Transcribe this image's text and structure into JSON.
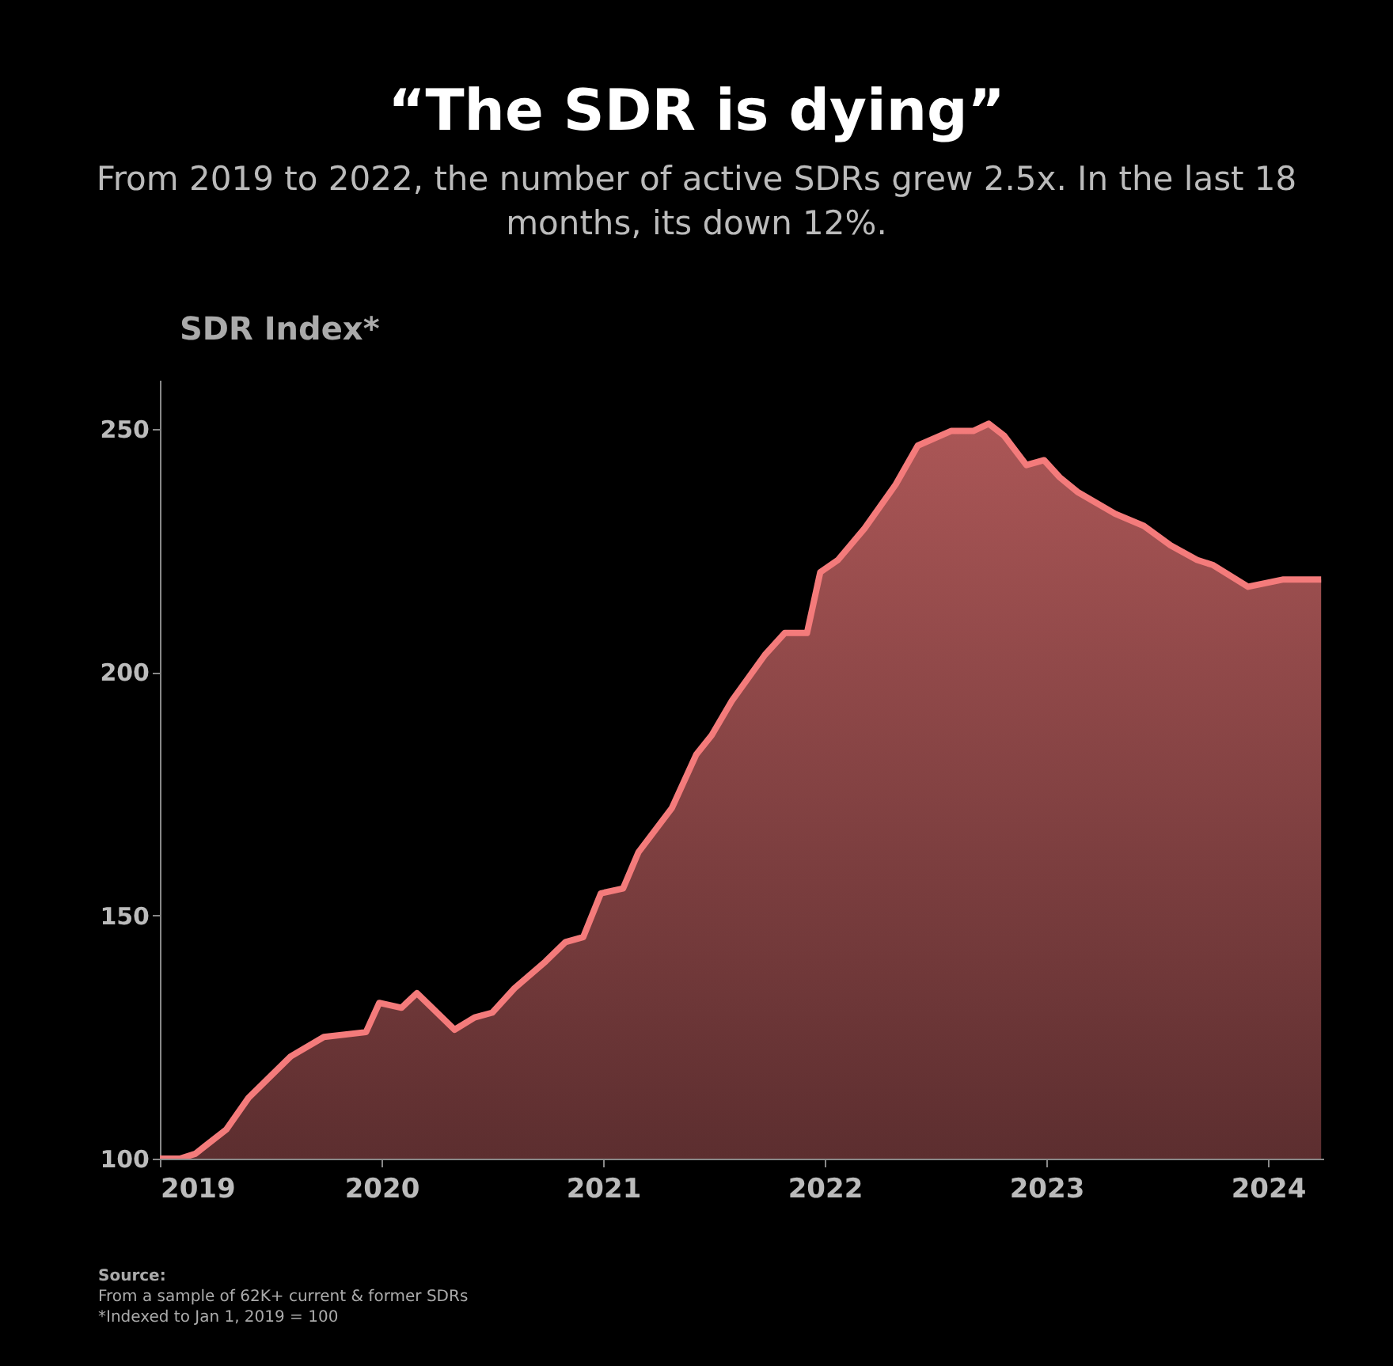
{
  "chart_data": {
    "type": "area",
    "title": "“The SDR is dying”",
    "subtitle": "From 2019 to 2022, the number of active SDRs grew 2.5x. In the last 18 months, its down 12%.",
    "ylabel": "SDR Index*",
    "annotations": [
      "Source:",
      "From a sample of 62K+ current & former SDRs",
      "*Indexed to Jan 1, 2019 = 100"
    ],
    "x": [
      2019.0,
      2019.09,
      2019.16,
      2019.3,
      2019.4,
      2019.59,
      2019.74,
      2019.93,
      2019.99,
      2020.09,
      2020.16,
      2020.33,
      2020.42,
      2020.5,
      2020.6,
      2020.74,
      2020.83,
      2020.91,
      2020.99,
      2021.09,
      2021.16,
      2021.31,
      2021.42,
      2021.49,
      2021.58,
      2021.73,
      2021.82,
      2021.92,
      2021.98,
      2022.06,
      2022.18,
      2022.32,
      2022.42,
      2022.57,
      2022.67,
      2022.74,
      2022.81,
      2022.91,
      2022.99,
      2023.06,
      2023.14,
      2023.31,
      2023.44,
      2023.56,
      2023.68,
      2023.75,
      2023.91,
      2024.07,
      2024.24
    ],
    "series": [
      {
        "color": "#f47b7b",
        "values": [
          100,
          100,
          101,
          106,
          112.5,
          121,
          125,
          126,
          132,
          131,
          134,
          126.5,
          129,
          130,
          135,
          140.5,
          144.5,
          145.5,
          154.5,
          155.5,
          163,
          172,
          183,
          187,
          194,
          203.5,
          208,
          208,
          220.5,
          223,
          229.5,
          238.5,
          246.5,
          249.5,
          249.5,
          251,
          248.5,
          242.5,
          243.5,
          240,
          237,
          232.5,
          230,
          226,
          223,
          222,
          217.5,
          219,
          219
        ]
      }
    ],
    "xlim": [
      2019,
      2024.25
    ],
    "xticks": [
      2019,
      2020,
      2021,
      2022,
      2023,
      2024
    ],
    "ylim": [
      100,
      260
    ],
    "yticks": [
      100,
      150,
      200,
      250
    ],
    "grid": false
  }
}
